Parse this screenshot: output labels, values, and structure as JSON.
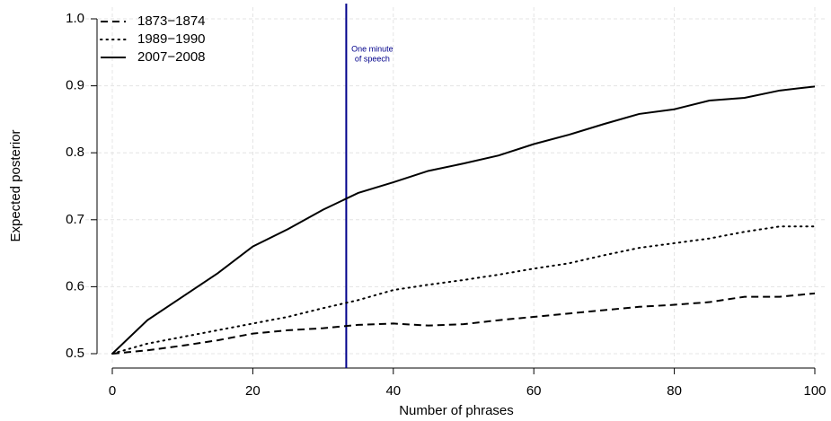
{
  "chart_data": {
    "type": "line",
    "x_label": "Number of phrases",
    "y_label": "Expected posterior",
    "x": [
      0,
      5,
      10,
      15,
      20,
      25,
      30,
      35,
      40,
      45,
      50,
      55,
      60,
      65,
      70,
      75,
      80,
      85,
      90,
      95,
      100
    ],
    "series": [
      {
        "name": "1873−1874",
        "color": "#000000",
        "dash": "dashed",
        "values": [
          0.5,
          0.505,
          0.512,
          0.52,
          0.53,
          0.535,
          0.538,
          0.543,
          0.545,
          0.542,
          0.544,
          0.55,
          0.555,
          0.56,
          0.565,
          0.57,
          0.573,
          0.577,
          0.585,
          0.585,
          0.59
        ]
      },
      {
        "name": "1989−1990",
        "color": "#000000",
        "dash": "dotted",
        "values": [
          0.5,
          0.515,
          0.525,
          0.535,
          0.545,
          0.555,
          0.568,
          0.58,
          0.595,
          0.603,
          0.61,
          0.618,
          0.627,
          0.635,
          0.647,
          0.658,
          0.665,
          0.672,
          0.682,
          0.69,
          0.69
        ]
      },
      {
        "name": "2007−2008",
        "color": "#000000",
        "dash": "solid",
        "values": [
          0.5,
          0.55,
          0.585,
          0.62,
          0.66,
          0.686,
          0.715,
          0.74,
          0.756,
          0.773,
          0.784,
          0.796,
          0.813,
          0.827,
          0.843,
          0.858,
          0.865,
          0.878,
          0.882,
          0.893,
          0.899
        ]
      }
    ],
    "annotation": {
      "x": 33.3,
      "lines": [
        "One minute",
        "of speech"
      ],
      "color": "#00008b"
    },
    "xlim": [
      0,
      100
    ],
    "xticks": [
      0,
      20,
      40,
      60,
      80,
      100
    ],
    "ylim": [
      0.5,
      1
    ],
    "yticks": [
      0.5,
      0.6,
      0.7,
      0.8,
      0.9,
      {
        "value": 1,
        "label": "1.0"
      }
    ],
    "grid": true,
    "legend": "top-left"
  }
}
